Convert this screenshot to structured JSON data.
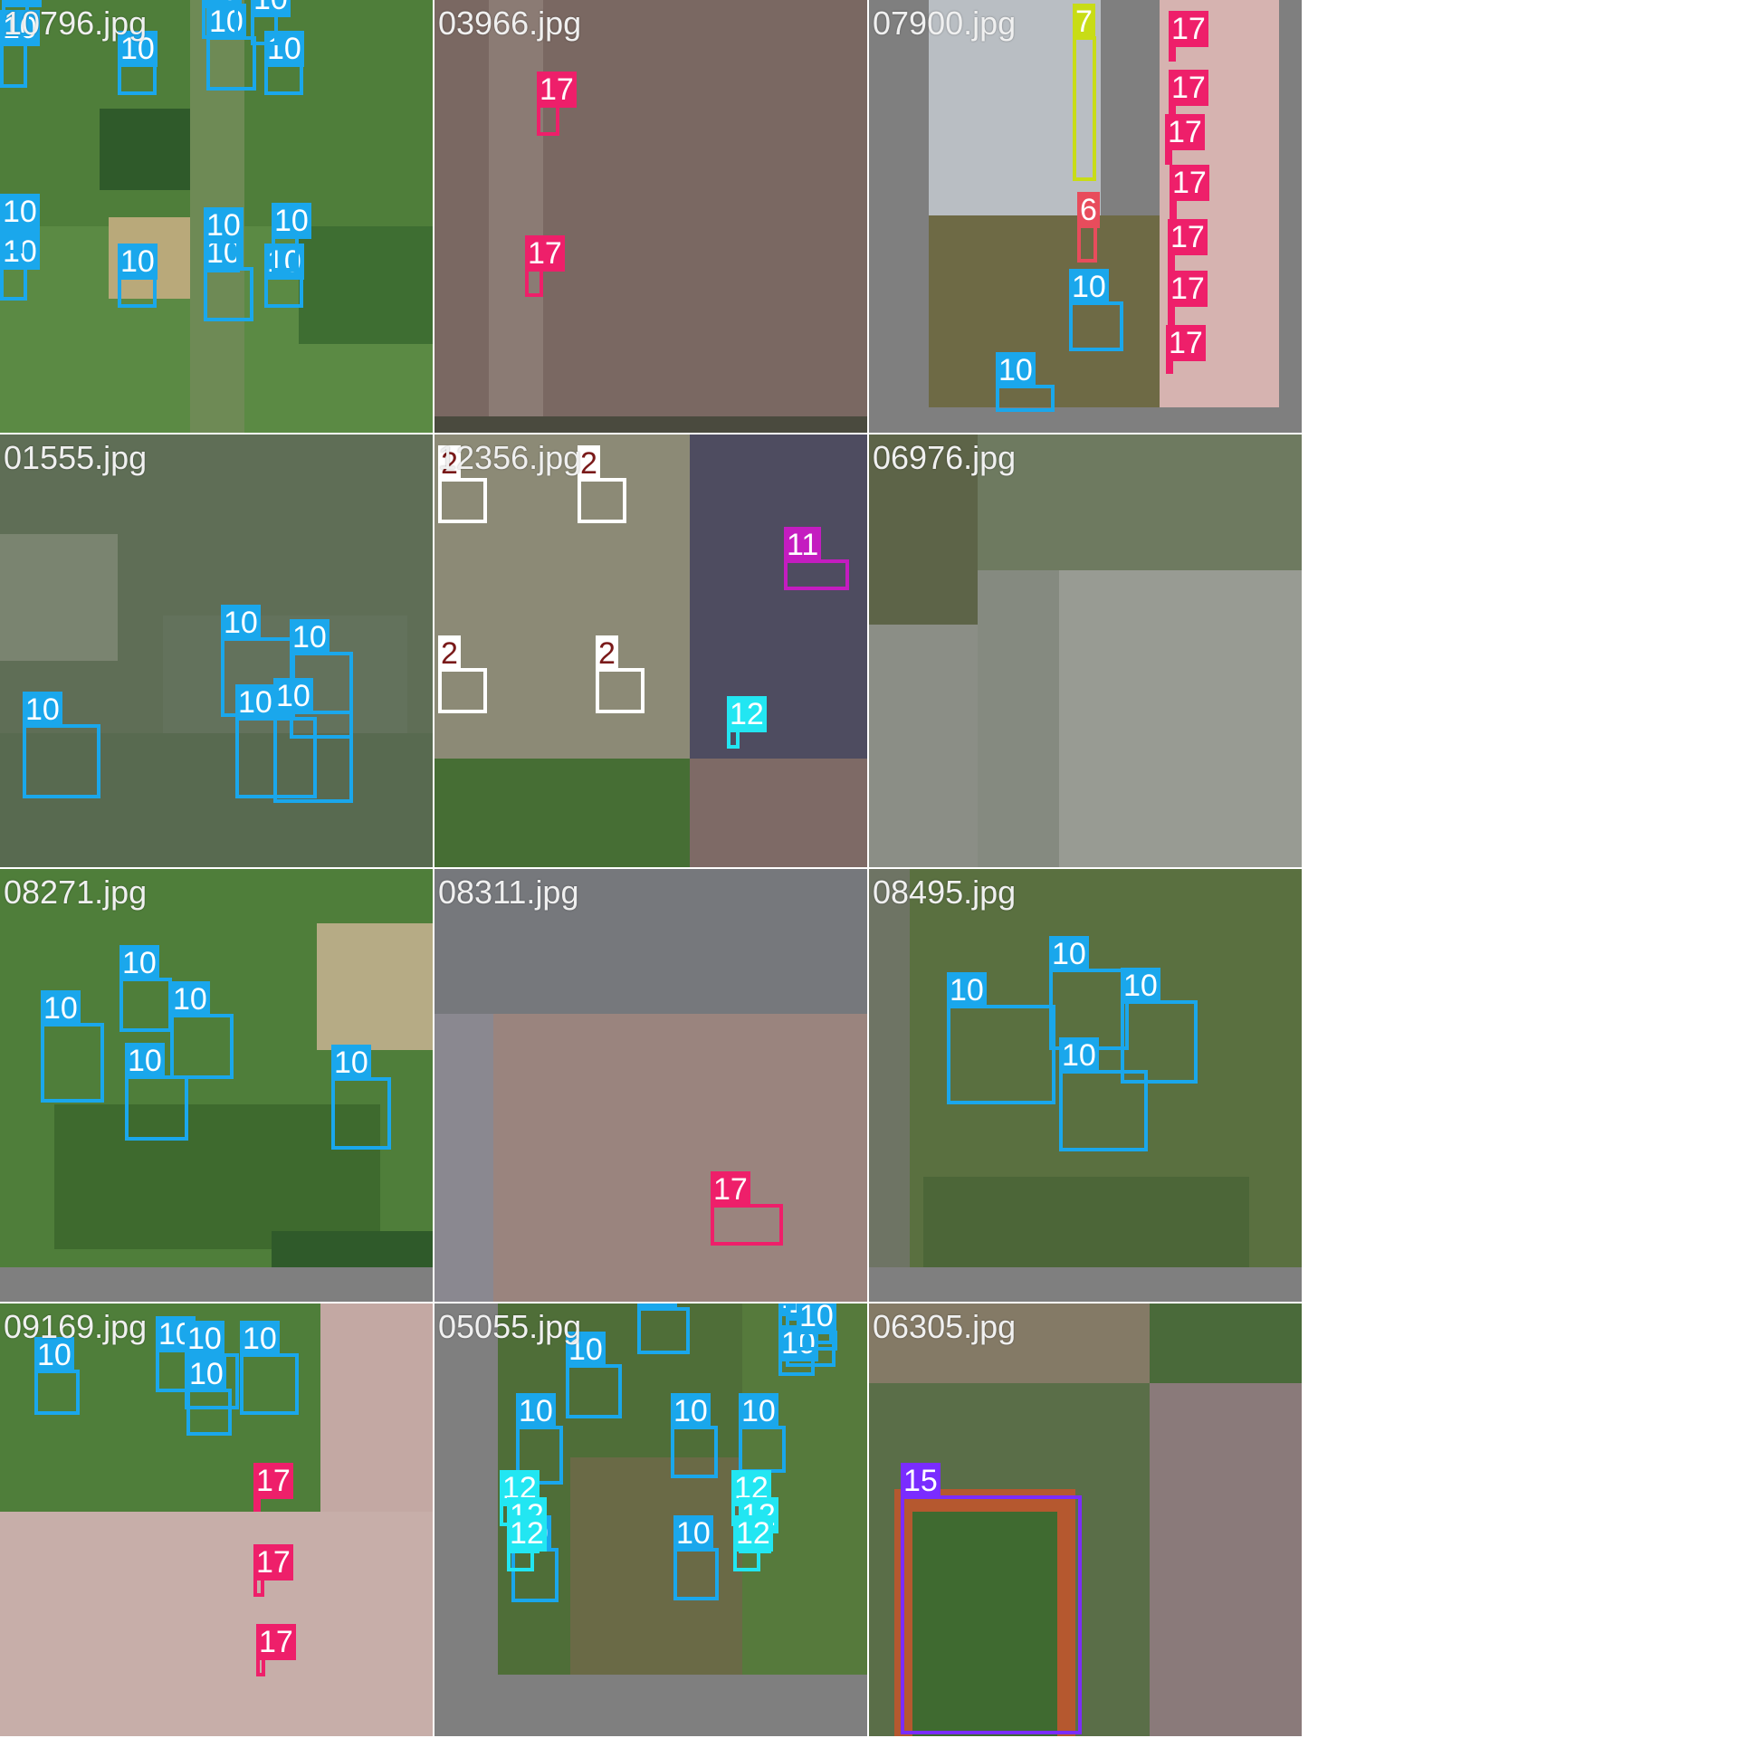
{
  "class_colors": {
    "2": "#ffffff",
    "6": "#e84c5c",
    "7": "#c8dc16",
    "10": "#1aa7ec",
    "11": "#c41cc0",
    "12": "#22e6f2",
    "15": "#7a2cff",
    "17": "#ee1f6a"
  },
  "tiles": [
    {
      "filename": "10796.jpg",
      "boxes": [
        {
          "class": "10"
        },
        {
          "class": "10"
        },
        {
          "class": "10"
        },
        {
          "class": "10"
        },
        {
          "class": "10"
        },
        {
          "class": "10"
        },
        {
          "class": "10"
        },
        {
          "class": "10"
        },
        {
          "class": "10"
        },
        {
          "class": "10"
        },
        {
          "class": "10"
        },
        {
          "class": "10"
        },
        {
          "class": "10"
        },
        {
          "class": "10"
        },
        {
          "class": "10"
        },
        {
          "class": "10"
        }
      ]
    },
    {
      "filename": "03966.jpg",
      "boxes": [
        {
          "class": "17"
        },
        {
          "class": "17"
        }
      ]
    },
    {
      "filename": "07900.jpg",
      "boxes": [
        {
          "class": "7"
        },
        {
          "class": "6"
        },
        {
          "class": "10"
        },
        {
          "class": "10"
        },
        {
          "class": "17"
        },
        {
          "class": "17"
        },
        {
          "class": "17"
        },
        {
          "class": "17"
        },
        {
          "class": "17"
        },
        {
          "class": "17"
        },
        {
          "class": "17"
        }
      ]
    },
    {
      "filename": "01555.jpg",
      "boxes": [
        {
          "class": "10"
        },
        {
          "class": "10"
        },
        {
          "class": "10"
        },
        {
          "class": "10"
        },
        {
          "class": "10"
        }
      ]
    },
    {
      "filename": "12356.jpg",
      "boxes": [
        {
          "class": "2"
        },
        {
          "class": "2"
        },
        {
          "class": "2"
        },
        {
          "class": "2"
        },
        {
          "class": "11"
        },
        {
          "class": "12"
        }
      ]
    },
    {
      "filename": "06976.jpg",
      "boxes": []
    },
    {
      "filename": "08271.jpg",
      "boxes": [
        {
          "class": "10"
        },
        {
          "class": "10"
        },
        {
          "class": "10"
        },
        {
          "class": "10"
        },
        {
          "class": "10"
        }
      ]
    },
    {
      "filename": "08311.jpg",
      "boxes": [
        {
          "class": "17"
        }
      ]
    },
    {
      "filename": "08495.jpg",
      "boxes": [
        {
          "class": "10"
        },
        {
          "class": "10"
        },
        {
          "class": "10"
        },
        {
          "class": "10"
        }
      ]
    },
    {
      "filename": "09169.jpg",
      "boxes": [
        {
          "class": "10"
        },
        {
          "class": "10"
        },
        {
          "class": "10"
        },
        {
          "class": "10"
        },
        {
          "class": "10"
        },
        {
          "class": "17"
        },
        {
          "class": "17"
        },
        {
          "class": "17"
        }
      ]
    },
    {
      "filename": "05055.jpg",
      "boxes": [
        {
          "class": "10"
        },
        {
          "class": "10"
        },
        {
          "class": "10"
        },
        {
          "class": "10"
        },
        {
          "class": "10"
        },
        {
          "class": "10"
        },
        {
          "class": "10"
        },
        {
          "class": "10"
        },
        {
          "class": "10"
        },
        {
          "class": "10"
        },
        {
          "class": "10"
        },
        {
          "class": "12"
        },
        {
          "class": "12"
        },
        {
          "class": "12"
        },
        {
          "class": "12"
        },
        {
          "class": "12"
        },
        {
          "class": "12"
        }
      ]
    },
    {
      "filename": "06305.jpg",
      "boxes": [
        {
          "class": "15"
        }
      ]
    }
  ]
}
